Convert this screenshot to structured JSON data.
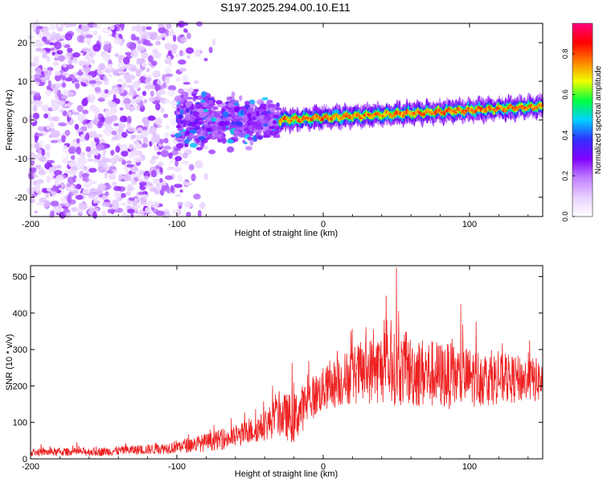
{
  "title": "S197.2025.294.00.10.E11",
  "chart_data": [
    {
      "type": "heatmap",
      "name": "spectrogram",
      "xlabel": "Height of straight line (km)",
      "ylabel": "Frequency (Hz)",
      "xlim": [
        -200,
        150
      ],
      "ylim": [
        -25,
        25
      ],
      "xticks": [
        -200,
        -100,
        0,
        100
      ],
      "yticks": [
        -20,
        -10,
        0,
        10,
        20
      ],
      "colorbar": {
        "label": "Normalized spectral amplitude",
        "range": [
          0,
          0.95
        ],
        "ticks": [
          0.0,
          0.2,
          0.4,
          0.6,
          0.8
        ],
        "colormap": [
          "#ffffff",
          "#e8d0ff",
          "#c080ff",
          "#8000ff",
          "#3030ff",
          "#00d0ff",
          "#00ff40",
          "#f0ff00",
          "#ff8000",
          "#ff0000",
          "#ff0080"
        ]
      },
      "features": [
        {
          "x_range": [
            -200,
            -95
          ],
          "frequency_range": [
            -25,
            25
          ],
          "amplitude": 0.1,
          "description": "scattered noise"
        },
        {
          "x_range": [
            -100,
            -30
          ],
          "frequency_center": 0,
          "frequency_spread": 8,
          "amplitude": 0.2
        },
        {
          "x_range": [
            -30,
            150
          ],
          "frequency_start": 0,
          "frequency_end": 3.5,
          "amplitude": 0.85
        }
      ]
    },
    {
      "type": "line",
      "name": "snr",
      "xlabel": "Height of straight line (km)",
      "ylabel": "SNR (10 * v/v)",
      "xlim": [
        -200,
        150
      ],
      "ylim": [
        0,
        530
      ],
      "xticks": [
        -200,
        -100,
        0,
        100
      ],
      "yticks": [
        0,
        100,
        200,
        300,
        400,
        500
      ],
      "color": "#ee2222",
      "envelope": [
        {
          "x": -200,
          "mean": 18,
          "spread": 10
        },
        {
          "x": -150,
          "mean": 20,
          "spread": 12
        },
        {
          "x": -110,
          "mean": 28,
          "spread": 15
        },
        {
          "x": -80,
          "mean": 45,
          "spread": 25
        },
        {
          "x": -60,
          "mean": 60,
          "spread": 30
        },
        {
          "x": -40,
          "mean": 90,
          "spread": 40
        },
        {
          "x": -30,
          "mean": 120,
          "spread": 60
        },
        {
          "x": -20,
          "mean": 110,
          "spread": 70
        },
        {
          "x": -10,
          "mean": 160,
          "spread": 60
        },
        {
          "x": 0,
          "mean": 190,
          "spread": 60
        },
        {
          "x": 20,
          "mean": 230,
          "spread": 80
        },
        {
          "x": 40,
          "mean": 250,
          "spread": 100
        },
        {
          "x": 60,
          "mean": 240,
          "spread": 100
        },
        {
          "x": 90,
          "mean": 225,
          "spread": 90
        },
        {
          "x": 120,
          "mean": 220,
          "spread": 70
        },
        {
          "x": 150,
          "mean": 215,
          "spread": 60
        }
      ],
      "peak": {
        "x": 50,
        "value": 525
      }
    }
  ]
}
